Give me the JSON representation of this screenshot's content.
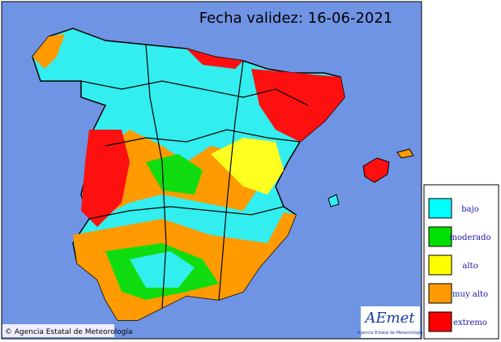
{
  "header": {
    "title": "Fecha validez: 16-06-2021"
  },
  "legend": {
    "items": [
      "bajo",
      "moderado",
      "alto",
      "muy alto",
      "extremo"
    ]
  },
  "footer": {
    "copyright": "© Agencia Estatal de Meteorología"
  },
  "logo": {
    "mark": "AEmet",
    "caption": "Agencia Estatal de Meteorología"
  }
}
